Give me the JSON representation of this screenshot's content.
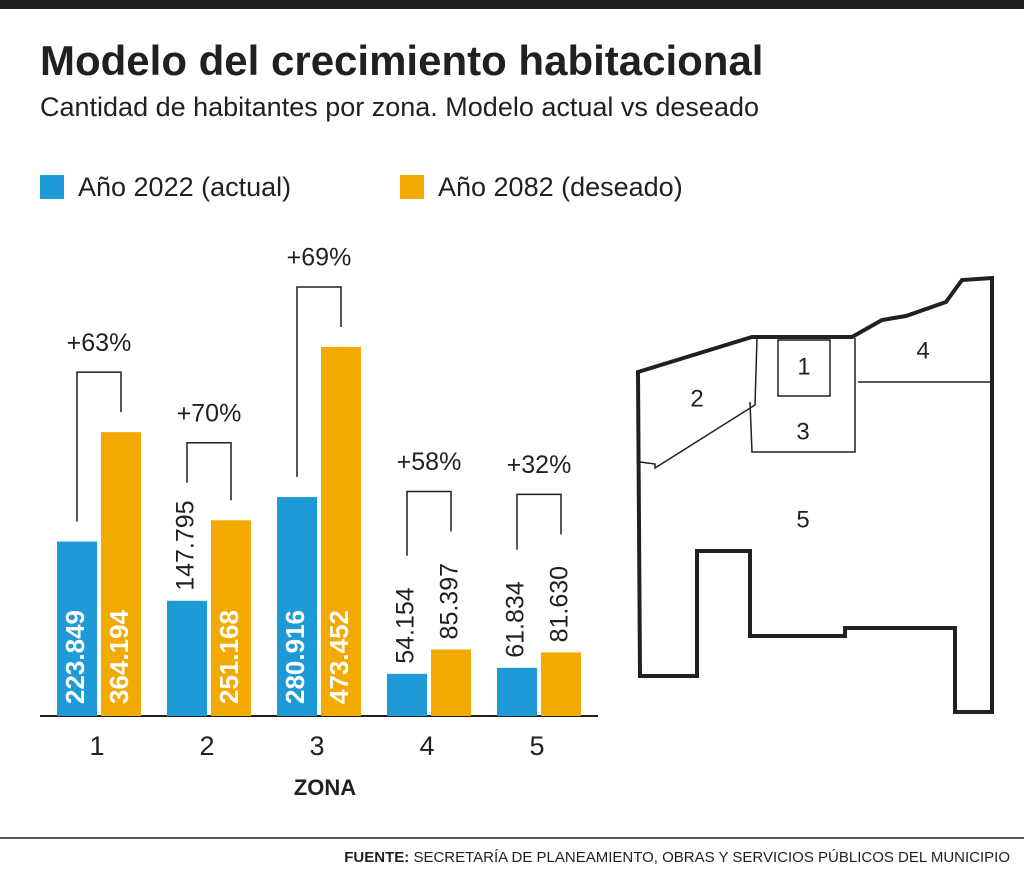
{
  "chart_data": {
    "type": "bar",
    "title": "Modelo del crecimiento habitacional",
    "subtitle": "Cantidad de habitantes por zona. Modelo actual vs deseado",
    "categories": [
      "1",
      "2",
      "3",
      "4",
      "5"
    ],
    "xlabel": "ZONA",
    "series": [
      {
        "name": "Año 2022 (actual)",
        "color": "#1e9ad6",
        "values": [
          223849,
          147795,
          280916,
          54154,
          61834
        ],
        "value_labels": [
          "223.849",
          "147.795",
          "280.916",
          "54.154",
          "61.834"
        ]
      },
      {
        "name": "Año 2082 (deseado)",
        "color": "#f2a900",
        "values": [
          364194,
          251168,
          473452,
          85397,
          81630
        ],
        "value_labels": [
          "364.194",
          "251.168",
          "473.452",
          "85.397",
          "81.630"
        ]
      }
    ],
    "annotations": [
      "+63%",
      "+70%",
      "+69%",
      "+58%",
      "+32%"
    ],
    "source_label": "FUENTE:",
    "source": "SECRETARÍA DE PLANEAMIENTO, OBRAS Y SERVICIOS PÚBLICOS DEL MUNICIPIO"
  },
  "map": {
    "labels": [
      "1",
      "2",
      "3",
      "4",
      "5"
    ]
  }
}
